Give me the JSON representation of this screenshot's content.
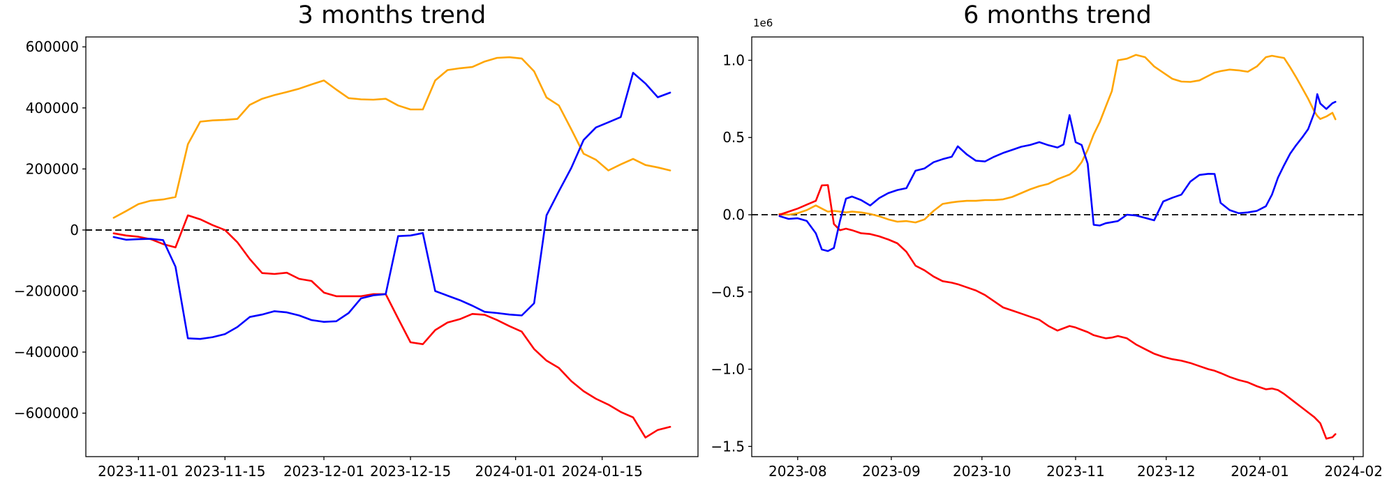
{
  "page": {
    "background": "#ffffff"
  },
  "chart_data": [
    {
      "id": "left",
      "type": "line",
      "title": "3 months trend",
      "start_date": "2023-10-28",
      "end_date": "2024-01-26",
      "x_unit": "days since 2023-10-28",
      "xlim": [
        -4.5,
        94.5
      ],
      "ylim": [
        -742500,
        632500
      ],
      "grid": false,
      "legend": "none",
      "zero_line": {
        "style": "dashed",
        "color": "#000000"
      },
      "offset_label": "",
      "xticks": [
        {
          "pos": 4,
          "label": "2023-11-01"
        },
        {
          "pos": 18,
          "label": "2023-11-15"
        },
        {
          "pos": 34,
          "label": "2023-12-01"
        },
        {
          "pos": 48,
          "label": "2023-12-15"
        },
        {
          "pos": 65,
          "label": "2024-01-01"
        },
        {
          "pos": 79,
          "label": "2024-01-15"
        }
      ],
      "yticks": [
        {
          "pos": 600000,
          "label": "600000"
        },
        {
          "pos": 400000,
          "label": "400000"
        },
        {
          "pos": 200000,
          "label": "200000"
        },
        {
          "pos": 0,
          "label": "0"
        },
        {
          "pos": -200000,
          "label": "−200000"
        },
        {
          "pos": -400000,
          "label": "−400000"
        },
        {
          "pos": -600000,
          "label": "−600000"
        }
      ],
      "x": [
        0,
        2,
        4,
        6,
        8,
        10,
        12,
        14,
        16,
        18,
        20,
        22,
        24,
        26,
        28,
        30,
        32,
        34,
        36,
        38,
        40,
        42,
        44,
        46,
        48,
        50,
        52,
        54,
        56,
        58,
        60,
        62,
        64,
        66,
        68,
        70,
        72,
        74,
        76,
        78,
        80,
        82,
        84,
        86,
        88,
        90
      ],
      "series": [
        {
          "name": "blue",
          "color": "#0000ff",
          "values": [
            -23000,
            -32000,
            -30000,
            -29000,
            -33000,
            -120000,
            -355000,
            -357000,
            -351000,
            -341000,
            -318000,
            -285000,
            -277000,
            -266000,
            -270000,
            -280000,
            -295000,
            -301000,
            -299000,
            -272000,
            -224000,
            -214000,
            -210000,
            -20000,
            -18000,
            -10000,
            -200000,
            -215000,
            -230000,
            -248000,
            -268000,
            -272000,
            -277000,
            -280000,
            -240000,
            48000,
            127000,
            203000,
            295000,
            336000,
            353000,
            370000,
            515000,
            480000,
            435000,
            450000
          ]
        },
        {
          "name": "orange",
          "color": "#ffa500",
          "values": [
            40000,
            62000,
            85000,
            96000,
            100000,
            108000,
            281000,
            355000,
            359000,
            361000,
            364000,
            410000,
            430000,
            442000,
            452000,
            463000,
            477000,
            490000,
            460000,
            432000,
            428000,
            427000,
            430000,
            408000,
            395000,
            395000,
            490000,
            524000,
            530000,
            534000,
            552000,
            564000,
            566000,
            562000,
            520000,
            434000,
            408000,
            330000,
            250000,
            230000,
            195000,
            215000,
            233000,
            213000,
            205000,
            195000
          ]
        },
        {
          "name": "red",
          "color": "#ff0000",
          "values": [
            -11000,
            -18000,
            -22000,
            -30000,
            -46000,
            -57000,
            48000,
            35000,
            16000,
            0,
            -40000,
            -95000,
            -141000,
            -144000,
            -140000,
            -160000,
            -167000,
            -205000,
            -217000,
            -217000,
            -217000,
            -210000,
            -210000,
            -290000,
            -368000,
            -374000,
            -328000,
            -303000,
            -292000,
            -275000,
            -278000,
            -295000,
            -315000,
            -333000,
            -390000,
            -428000,
            -452000,
            -495000,
            -528000,
            -553000,
            -572000,
            -596000,
            -614000,
            -680000,
            -655000,
            -645000
          ]
        }
      ]
    },
    {
      "id": "right",
      "type": "line",
      "title": "6 months trend",
      "start_date": "2023-07-26",
      "end_date": "2024-01-26",
      "x_unit": "days since 2023-07-26",
      "xlim": [
        -9.2,
        193.2
      ],
      "ylim": [
        -1566000,
        1151000
      ],
      "grid": false,
      "legend": "none",
      "zero_line": {
        "style": "dashed",
        "color": "#000000"
      },
      "offset_label": "1e6",
      "xticks": [
        {
          "pos": 6,
          "label": "2023-08"
        },
        {
          "pos": 37,
          "label": "2023-09"
        },
        {
          "pos": 67,
          "label": "2023-10"
        },
        {
          "pos": 98,
          "label": "2023-11"
        },
        {
          "pos": 128,
          "label": "2023-12"
        },
        {
          "pos": 159,
          "label": "2024-01"
        },
        {
          "pos": 190,
          "label": "2024-02"
        }
      ],
      "yticks": [
        {
          "pos": 1000000,
          "label": "1.0"
        },
        {
          "pos": 500000,
          "label": "0.5"
        },
        {
          "pos": 0,
          "label": "0.0"
        },
        {
          "pos": -500000,
          "label": "−0.5"
        },
        {
          "pos": -1000000,
          "label": "−1.0"
        },
        {
          "pos": -1500000,
          "label": "−1.5"
        }
      ],
      "x": [
        0,
        3,
        6,
        9,
        12,
        14,
        16,
        18,
        20,
        22,
        24,
        27,
        30,
        33,
        36,
        39,
        42,
        45,
        48,
        51,
        54,
        57,
        59,
        62,
        65,
        68,
        71,
        74,
        77,
        80,
        83,
        86,
        89,
        92,
        94,
        96,
        98,
        100,
        102,
        104,
        106,
        108,
        110,
        112,
        115,
        118,
        121,
        124,
        127,
        130,
        133,
        136,
        139,
        142,
        144,
        146,
        149,
        152,
        155,
        158,
        161,
        163,
        165,
        167,
        169,
        171,
        173,
        175,
        177,
        178,
        179,
        181,
        183,
        184
      ],
      "series": [
        {
          "name": "blue",
          "color": "#0000ff",
          "values": [
            -9000,
            -27000,
            -23000,
            -40000,
            -120000,
            -225000,
            -235000,
            -215000,
            -40000,
            104000,
            118000,
            95000,
            60000,
            108000,
            140000,
            160000,
            172000,
            285000,
            300000,
            340000,
            360000,
            375000,
            443000,
            390000,
            350000,
            345000,
            375000,
            400000,
            420000,
            440000,
            452000,
            470000,
            450000,
            435000,
            455000,
            645000,
            470000,
            452000,
            330000,
            -65000,
            -70000,
            -55000,
            -48000,
            -41000,
            0,
            -5000,
            -20000,
            -36000,
            86000,
            110000,
            130000,
            215000,
            258000,
            265000,
            264000,
            77000,
            30000,
            10000,
            15000,
            25000,
            55000,
            130000,
            240000,
            320000,
            395000,
            450000,
            500000,
            555000,
            660000,
            781000,
            720000,
            685000,
            722000,
            731000
          ]
        },
        {
          "name": "orange",
          "color": "#ffa500",
          "values": [
            5000,
            0,
            10000,
            30000,
            60000,
            40000,
            20000,
            25000,
            20000,
            15000,
            20000,
            15000,
            5000,
            -10000,
            -30000,
            -45000,
            -41000,
            -50000,
            -30000,
            25000,
            70000,
            80000,
            85000,
            90000,
            90000,
            95000,
            95000,
            100000,
            115000,
            140000,
            165000,
            185000,
            200000,
            230000,
            245000,
            260000,
            290000,
            340000,
            420000,
            520000,
            600000,
            700000,
            800000,
            1000000,
            1010000,
            1035000,
            1020000,
            960000,
            920000,
            880000,
            862000,
            860000,
            870000,
            900000,
            920000,
            930000,
            940000,
            935000,
            926000,
            960000,
            1020000,
            1029000,
            1022000,
            1015000,
            955000,
            890000,
            820000,
            750000,
            670000,
            640000,
            620000,
            636000,
            660000,
            618000
          ]
        },
        {
          "name": "red",
          "color": "#ff0000",
          "values": [
            0,
            20000,
            40000,
            65000,
            90000,
            190000,
            192000,
            -60000,
            -100000,
            -90000,
            -100000,
            -120000,
            -125000,
            -140000,
            -160000,
            -185000,
            -240000,
            -330000,
            -360000,
            -400000,
            -430000,
            -440000,
            -450000,
            -470000,
            -490000,
            -520000,
            -560000,
            -600000,
            -620000,
            -640000,
            -660000,
            -680000,
            -720000,
            -750000,
            -735000,
            -720000,
            -730000,
            -745000,
            -760000,
            -780000,
            -790000,
            -800000,
            -795000,
            -785000,
            -800000,
            -840000,
            -870000,
            -900000,
            -920000,
            -935000,
            -945000,
            -960000,
            -980000,
            -1000000,
            -1010000,
            -1025000,
            -1050000,
            -1070000,
            -1085000,
            -1110000,
            -1130000,
            -1125000,
            -1135000,
            -1160000,
            -1190000,
            -1220000,
            -1250000,
            -1280000,
            -1310000,
            -1330000,
            -1350000,
            -1450000,
            -1440000,
            -1420000
          ]
        }
      ]
    }
  ]
}
